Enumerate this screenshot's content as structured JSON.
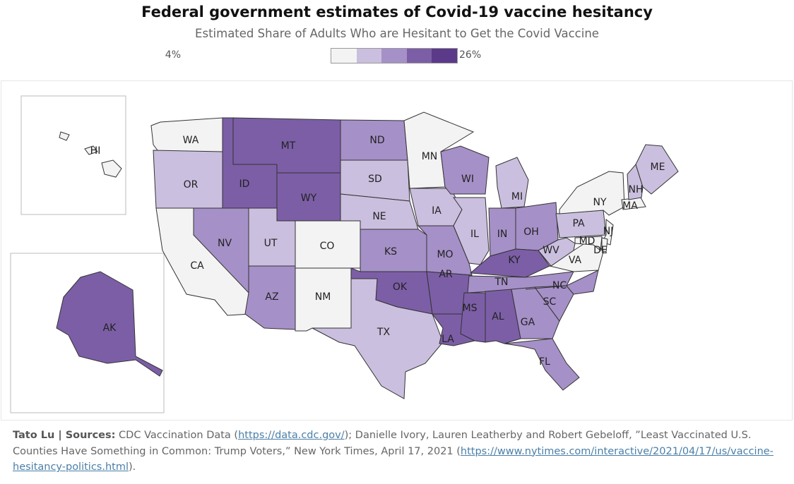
{
  "title": "Federal government estimates of Covid-19 vaccine hesitancy",
  "subtitle": "Estimated Share of Adults Who are Hesitant to Get the Covid Vaccine",
  "legend": {
    "min_label": "4%",
    "max_label": "26%",
    "colors": [
      "#f3f3f3",
      "#cbbfdf",
      "#a690c8",
      "#7c5ea6",
      "#5c3a8a"
    ]
  },
  "states": [
    {
      "abbr": "WA",
      "level": 0
    },
    {
      "abbr": "OR",
      "level": 1
    },
    {
      "abbr": "CA",
      "level": 0
    },
    {
      "abbr": "NV",
      "level": 2
    },
    {
      "abbr": "ID",
      "level": 3
    },
    {
      "abbr": "MT",
      "level": 3
    },
    {
      "abbr": "WY",
      "level": 3
    },
    {
      "abbr": "UT",
      "level": 1
    },
    {
      "abbr": "AZ",
      "level": 2
    },
    {
      "abbr": "CO",
      "level": 0
    },
    {
      "abbr": "NM",
      "level": 0
    },
    {
      "abbr": "ND",
      "level": 2
    },
    {
      "abbr": "SD",
      "level": 1
    },
    {
      "abbr": "NE",
      "level": 1
    },
    {
      "abbr": "KS",
      "level": 2
    },
    {
      "abbr": "OK",
      "level": 3
    },
    {
      "abbr": "TX",
      "level": 1
    },
    {
      "abbr": "MN",
      "level": 0
    },
    {
      "abbr": "IA",
      "level": 1
    },
    {
      "abbr": "MO",
      "level": 2
    },
    {
      "abbr": "AR",
      "level": 3
    },
    {
      "abbr": "LA",
      "level": 3
    },
    {
      "abbr": "WI",
      "level": 2
    },
    {
      "abbr": "IL",
      "level": 1
    },
    {
      "abbr": "MI",
      "level": 1
    },
    {
      "abbr": "IN",
      "level": 2
    },
    {
      "abbr": "OH",
      "level": 2
    },
    {
      "abbr": "KY",
      "level": 3
    },
    {
      "abbr": "TN",
      "level": 2
    },
    {
      "abbr": "MS",
      "level": 3
    },
    {
      "abbr": "AL",
      "level": 3
    },
    {
      "abbr": "GA",
      "level": 2
    },
    {
      "abbr": "FL",
      "level": 2
    },
    {
      "abbr": "SC",
      "level": 2
    },
    {
      "abbr": "NC",
      "level": 2
    },
    {
      "abbr": "VA",
      "level": 0
    },
    {
      "abbr": "WV",
      "level": 1
    },
    {
      "abbr": "PA",
      "level": 1
    },
    {
      "abbr": "NY",
      "level": 0
    },
    {
      "abbr": "ME",
      "level": 1
    },
    {
      "abbr": "NH",
      "level": 1
    },
    {
      "abbr": "MA",
      "level": 0
    },
    {
      "abbr": "NJ",
      "level": 0
    },
    {
      "abbr": "MD",
      "level": 0
    },
    {
      "abbr": "DE",
      "level": 0
    },
    {
      "abbr": "AK",
      "level": 3
    },
    {
      "abbr": "HI",
      "level": 0
    }
  ],
  "footer": {
    "author": "Tato Lu | Sources:",
    "text1": " CDC Vaccination Data (",
    "link1": "https://data.cdc.gov/",
    "text2": "); Danielle Ivory, Lauren Leatherby and Robert Gebeloff, ”Least Vaccinated U.S. Counties Have Something in Common: Trump Voters,” New York Times, April 17, 2021 (",
    "link2": "https://www.nytimes.com/interactive/2021/04/17/us/vaccine-hesitancy-politics.html",
    "text3": ")."
  }
}
